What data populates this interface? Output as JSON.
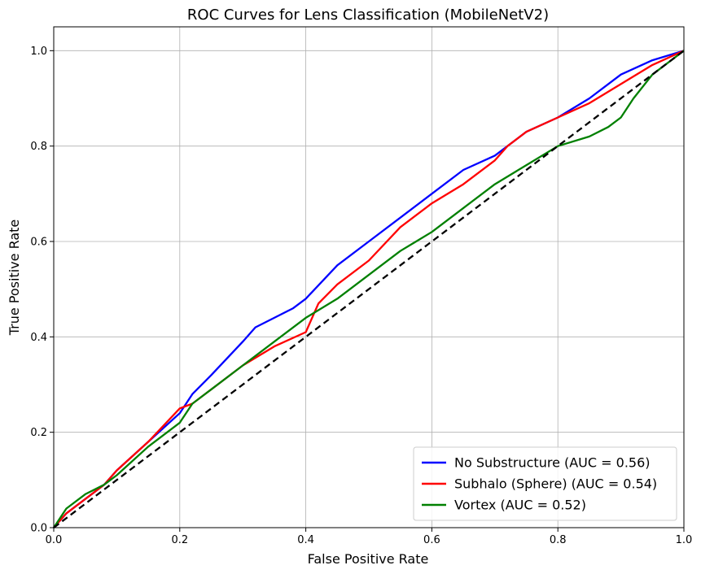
{
  "chart_data": {
    "type": "line",
    "title": "ROC Curves for Lens Classification (MobileNetV2)",
    "xlabel": "False Positive Rate",
    "ylabel": "True Positive Rate",
    "xlim": [
      0,
      1
    ],
    "ylim": [
      0,
      1.05
    ],
    "xticks": [
      0,
      0.2,
      0.4,
      0.6,
      0.8,
      1.0
    ],
    "yticks": [
      0,
      0.2,
      0.4,
      0.6,
      0.8,
      1.0
    ],
    "xtick_labels": [
      "0.0",
      "0.2",
      "0.4",
      "0.6",
      "0.8",
      "1.0"
    ],
    "ytick_labels": [
      "0.0",
      "0.2",
      "0.4",
      "0.6",
      "0.8",
      "1.0"
    ],
    "grid": true,
    "legend_position": "bottom-right",
    "series": [
      {
        "name": "No Substructure (AUC = 0.56)",
        "color": "#0000ff",
        "x": [
          0,
          0.02,
          0.05,
          0.08,
          0.1,
          0.15,
          0.2,
          0.22,
          0.25,
          0.3,
          0.32,
          0.35,
          0.38,
          0.4,
          0.45,
          0.5,
          0.55,
          0.6,
          0.65,
          0.7,
          0.75,
          0.8,
          0.85,
          0.88,
          0.9,
          0.95,
          1.0
        ],
        "y": [
          0,
          0.03,
          0.06,
          0.09,
          0.12,
          0.18,
          0.24,
          0.28,
          0.32,
          0.39,
          0.42,
          0.44,
          0.46,
          0.48,
          0.55,
          0.6,
          0.65,
          0.7,
          0.75,
          0.78,
          0.83,
          0.86,
          0.9,
          0.93,
          0.95,
          0.98,
          1.0
        ]
      },
      {
        "name": "Subhalo (Sphere) (AUC = 0.54)",
        "color": "#ff0000",
        "x": [
          0,
          0.02,
          0.05,
          0.08,
          0.1,
          0.15,
          0.2,
          0.22,
          0.25,
          0.3,
          0.35,
          0.4,
          0.42,
          0.45,
          0.5,
          0.55,
          0.6,
          0.65,
          0.7,
          0.72,
          0.75,
          0.8,
          0.85,
          0.9,
          0.95,
          1.0
        ],
        "y": [
          0,
          0.03,
          0.06,
          0.09,
          0.12,
          0.18,
          0.25,
          0.26,
          0.29,
          0.34,
          0.38,
          0.41,
          0.47,
          0.51,
          0.56,
          0.63,
          0.68,
          0.72,
          0.77,
          0.8,
          0.83,
          0.86,
          0.89,
          0.93,
          0.97,
          1.0
        ]
      },
      {
        "name": "Vortex (AUC = 0.52)",
        "color": "#008000",
        "x": [
          0,
          0.02,
          0.05,
          0.08,
          0.1,
          0.15,
          0.2,
          0.22,
          0.25,
          0.3,
          0.35,
          0.4,
          0.45,
          0.5,
          0.55,
          0.6,
          0.65,
          0.7,
          0.75,
          0.8,
          0.85,
          0.88,
          0.9,
          0.92,
          0.95,
          1.0
        ],
        "y": [
          0,
          0.04,
          0.07,
          0.09,
          0.11,
          0.17,
          0.22,
          0.26,
          0.29,
          0.34,
          0.39,
          0.44,
          0.48,
          0.53,
          0.58,
          0.62,
          0.67,
          0.72,
          0.76,
          0.8,
          0.82,
          0.84,
          0.86,
          0.9,
          0.95,
          1.0
        ]
      },
      {
        "name": "",
        "color": "#000000",
        "dashed": true,
        "x": [
          0,
          1
        ],
        "y": [
          0,
          1
        ]
      }
    ]
  }
}
